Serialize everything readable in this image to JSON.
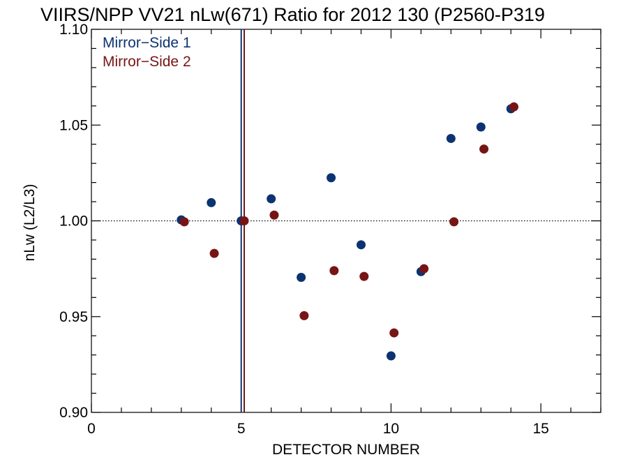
{
  "chart_data": {
    "type": "scatter",
    "title": "VIIRS/NPP VV21 nLw(671) Ratio for 2012 130 (P2560-P319",
    "xlabel": "DETECTOR NUMBER",
    "ylabel": "nLw (L2/L3)",
    "xlim": [
      0,
      17
    ],
    "ylim": [
      0.9,
      1.1
    ],
    "x_ticks": [
      0,
      5,
      10,
      15
    ],
    "x_tick_labels": [
      "0",
      "5",
      "10",
      "15"
    ],
    "y_ticks": [
      0.9,
      0.95,
      1.0,
      1.05,
      1.1
    ],
    "y_tick_labels": [
      "0.90",
      "0.95",
      "1.00",
      "1.05",
      "1.10"
    ],
    "reference_line_y": 1.0,
    "vertical_lines_x": [
      5.0,
      5.1
    ],
    "legend_placement": "top-left",
    "series": [
      {
        "name": "Mirror−Side 1",
        "color": "#0c3371",
        "x": [
          3,
          4,
          5,
          6,
          7,
          8,
          9,
          10,
          11,
          12,
          13,
          14
        ],
        "y": [
          1.0005,
          1.0095,
          1.0,
          1.0115,
          0.9705,
          1.0225,
          0.9875,
          0.9295,
          0.9735,
          1.043,
          1.049,
          1.0585
        ]
      },
      {
        "name": "Mirror−Side 2",
        "color": "#771515",
        "x": [
          3.1,
          4.1,
          5.1,
          6.1,
          7.1,
          8.1,
          9.1,
          10.1,
          11.1,
          12.1,
          13.1,
          14.1
        ],
        "y": [
          0.9995,
          0.983,
          1.0,
          1.003,
          0.9505,
          0.974,
          0.971,
          0.9415,
          0.975,
          0.9995,
          1.0375,
          1.0595
        ]
      }
    ]
  }
}
